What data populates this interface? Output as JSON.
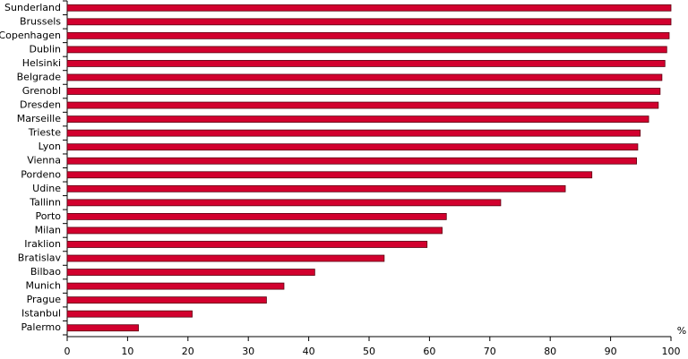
{
  "chart_data": {
    "type": "barh",
    "categories": [
      "Sunderland",
      "Brussels",
      "Copenhagen",
      "Dublin",
      "Helsinki",
      "Belgrade",
      "Grenobl",
      "Dresden",
      "Marseille",
      "Trieste",
      "Lyon",
      "Vienna",
      "Pordeno",
      "Udine",
      "Tallinn",
      "Porto",
      "Milan",
      "Iraklion",
      "Bratislav",
      "Bilbao",
      "Munich",
      "Prague",
      "Istanbul",
      "Palermo"
    ],
    "values": [
      100,
      100,
      99.7,
      99.3,
      99,
      98.5,
      98.2,
      97.9,
      96.3,
      94.9,
      94.5,
      94.3,
      86.9,
      82.5,
      71.8,
      62.8,
      62.1,
      59.6,
      52.5,
      41,
      35.9,
      33,
      20.7,
      11.8
    ],
    "color": "#d2002e",
    "x_label": "%",
    "xlim": [
      0,
      100
    ],
    "xticks": [
      0,
      10,
      20,
      30,
      40,
      50,
      60,
      70,
      80,
      90,
      100
    ]
  }
}
